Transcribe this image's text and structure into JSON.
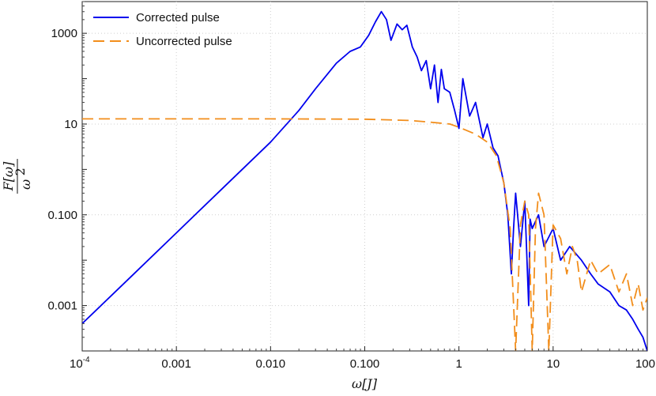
{
  "chart_data": {
    "type": "line",
    "xscale": "log",
    "yscale": "log",
    "xlim": [
      0.0001,
      100
    ],
    "ylim": [
      0.0001,
      5000
    ],
    "xlabel": "ω[J]",
    "ylabel": "F[ω] / ω²",
    "ylabel_num": "F[ω]",
    "ylabel_den": "ω",
    "ylabel_den_sup": "2",
    "grid": true,
    "legend_position": "top-left",
    "x_ticks": [
      {
        "value": 0.0001,
        "label": "10",
        "sup": "-4"
      },
      {
        "value": 0.001,
        "label": "0.001"
      },
      {
        "value": 0.01,
        "label": "0.010"
      },
      {
        "value": 0.1,
        "label": "0.100"
      },
      {
        "value": 1,
        "label": "1"
      },
      {
        "value": 10,
        "label": "10"
      },
      {
        "value": 100,
        "label": "100"
      }
    ],
    "y_ticks": [
      {
        "value": 0.001,
        "label": "0.001"
      },
      {
        "value": 0.1,
        "label": "0.100"
      },
      {
        "value": 10,
        "label": "10"
      },
      {
        "value": 1000,
        "label": "1000"
      }
    ],
    "series": [
      {
        "name": "Corrected pulse",
        "color": "#0000ee",
        "style": "solid",
        "x": [
          0.0001,
          0.0003,
          0.001,
          0.003,
          0.01,
          0.02,
          0.03,
          0.05,
          0.07,
          0.09,
          0.11,
          0.13,
          0.15,
          0.17,
          0.19,
          0.22,
          0.25,
          0.28,
          0.32,
          0.36,
          0.4,
          0.45,
          0.5,
          0.55,
          0.6,
          0.65,
          0.7,
          0.8,
          0.9,
          1.0,
          1.1,
          1.3,
          1.5,
          1.8,
          2.0,
          2.3,
          2.6,
          3.0,
          3.3,
          3.6,
          3.8,
          4.0,
          4.5,
          5.0,
          5.5,
          5.7,
          6.0,
          7.0,
          8.0,
          10.0,
          12.0,
          15.0,
          20.0,
          25.0,
          30.0,
          40.0,
          50.0,
          60.0,
          70.0,
          80.0,
          90.0,
          100.0
        ],
        "y": [
          0.0004,
          0.0036,
          0.04,
          0.36,
          4.0,
          20.0,
          60.0,
          220.0,
          400.0,
          500.0,
          900.0,
          1800.0,
          3000.0,
          2000.0,
          700.0,
          1600.0,
          1200.0,
          1500.0,
          500.0,
          300.0,
          150.0,
          250.0,
          60.0,
          200.0,
          30.0,
          160.0,
          60.0,
          50.0,
          20.0,
          8.0,
          100.0,
          15.0,
          30.0,
          5.0,
          10.0,
          3.0,
          2.0,
          0.5,
          0.1,
          0.005,
          0.05,
          0.3,
          0.02,
          0.2,
          0.001,
          0.08,
          0.05,
          0.1,
          0.02,
          0.05,
          0.01,
          0.02,
          0.01,
          0.005,
          0.003,
          0.002,
          0.001,
          0.0008,
          0.0005,
          0.0003,
          0.0002,
          0.0001
        ]
      },
      {
        "name": "Uncorrected pulse",
        "color": "#f28e1c",
        "style": "dashed",
        "x": [
          0.0001,
          0.001,
          0.01,
          0.1,
          0.3,
          0.5,
          0.8,
          1.0,
          1.5,
          2.0,
          2.5,
          3.0,
          3.5,
          4.0,
          4.5,
          5.0,
          5.5,
          6.0,
          6.5,
          7.0,
          8.0,
          9.0,
          10.0,
          12.0,
          14.0,
          16.0,
          18.0,
          20.0,
          25.0,
          30.0,
          40.0,
          50.0,
          60.0,
          70.0,
          80.0,
          90.0,
          100.0
        ],
        "y": [
          13.0,
          13.0,
          13.0,
          12.8,
          12.0,
          11.0,
          10.0,
          8.5,
          6.0,
          4.0,
          2.0,
          0.5,
          0.05,
          0.0001,
          0.06,
          0.2,
          0.1,
          0.0001,
          0.05,
          0.3,
          0.1,
          0.0001,
          0.06,
          0.03,
          0.005,
          0.02,
          0.01,
          0.002,
          0.01,
          0.005,
          0.008,
          0.002,
          0.005,
          0.001,
          0.003,
          0.0008,
          0.0015
        ]
      }
    ]
  }
}
